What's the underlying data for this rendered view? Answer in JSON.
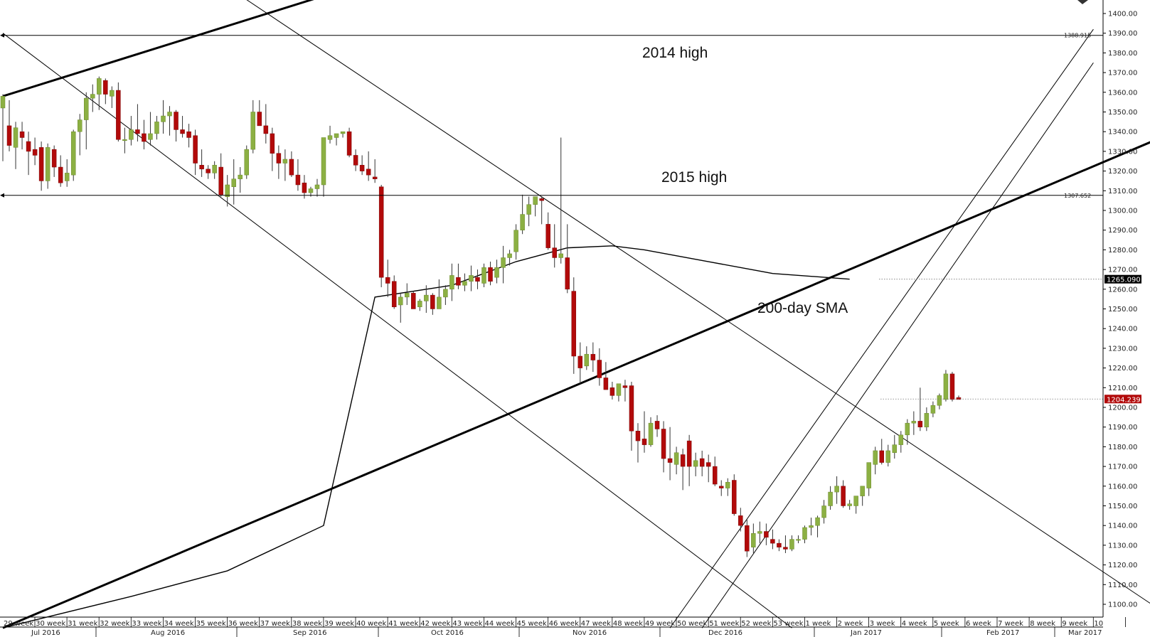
{
  "chart_data": {
    "type": "candlestick",
    "y_axis": {
      "range": [
        1100,
        1400
      ],
      "ticks": [
        "1400.00",
        "1390.00",
        "1380.00",
        "1370.00",
        "1360.00",
        "1350.00",
        "1340.00",
        "1330.00",
        "1320.00",
        "1310.00",
        "1300.00",
        "1290.00",
        "1280.00",
        "1270.00",
        "1260.00",
        "1250.00",
        "1240.00",
        "1230.00",
        "1220.00",
        "1210.00",
        "1200.00",
        "1190.00",
        "1180.00",
        "1170.00",
        "1160.00",
        "1150.00",
        "1140.00",
        "1130.00",
        "1120.00",
        "1110.00",
        "1100.00"
      ]
    },
    "x_axis": {
      "week_labels": [
        "29 week",
        "30 week",
        "31 week",
        "32 week",
        "33 week",
        "34 week",
        "35 week",
        "36 week",
        "37 week",
        "38 week",
        "39 week",
        "40 week",
        "41 week",
        "42 week",
        "43 week",
        "44 week",
        "45 week",
        "46 week",
        "47 week",
        "48 week",
        "49 week",
        "50 week",
        "51 week",
        "52 week",
        "53 week",
        "1 week",
        "2 week",
        "3 week",
        "4 week",
        "5 week",
        "6 week",
        "7 week",
        "8 week",
        "9 week",
        "10"
      ],
      "month_labels": [
        "Jul 2016",
        "Aug 2016",
        "Sep 2016",
        "Oct 2016",
        "Nov 2016",
        "Dec 2016",
        "Jan 2017",
        "Feb 2017",
        "Mar 2017"
      ]
    },
    "candles": [
      {
        "o": 1352,
        "h": 1359,
        "l": 1325,
        "c": 1358
      },
      {
        "o": 1343,
        "h": 1356,
        "l": 1330,
        "c": 1333
      },
      {
        "o": 1332,
        "h": 1345,
        "l": 1321,
        "c": 1342
      },
      {
        "o": 1340,
        "h": 1345,
        "l": 1331,
        "c": 1337
      },
      {
        "o": 1335,
        "h": 1340,
        "l": 1318,
        "c": 1330
      },
      {
        "o": 1331,
        "h": 1337,
        "l": 1323,
        "c": 1328
      },
      {
        "o": 1332,
        "h": 1335,
        "l": 1310,
        "c": 1315
      },
      {
        "o": 1315,
        "h": 1334,
        "l": 1311,
        "c": 1332
      },
      {
        "o": 1331,
        "h": 1333,
        "l": 1317,
        "c": 1322
      },
      {
        "o": 1322,
        "h": 1328,
        "l": 1312,
        "c": 1314
      },
      {
        "o": 1315,
        "h": 1326,
        "l": 1312,
        "c": 1319
      },
      {
        "o": 1318,
        "h": 1341,
        "l": 1315,
        "c": 1340
      },
      {
        "o": 1340,
        "h": 1349,
        "l": 1328,
        "c": 1346
      },
      {
        "o": 1346,
        "h": 1360,
        "l": 1331,
        "c": 1357
      },
      {
        "o": 1357,
        "h": 1364,
        "l": 1350,
        "c": 1359
      },
      {
        "o": 1359,
        "h": 1368,
        "l": 1351,
        "c": 1367
      },
      {
        "o": 1366,
        "h": 1367,
        "l": 1354,
        "c": 1359
      },
      {
        "o": 1358,
        "h": 1363,
        "l": 1352,
        "c": 1361
      },
      {
        "o": 1361,
        "h": 1365,
        "l": 1335,
        "c": 1336
      },
      {
        "o": 1336,
        "h": 1342,
        "l": 1329,
        "c": 1336
      },
      {
        "o": 1336,
        "h": 1348,
        "l": 1333,
        "c": 1341
      },
      {
        "o": 1341,
        "h": 1354,
        "l": 1335,
        "c": 1339
      },
      {
        "o": 1339,
        "h": 1346,
        "l": 1331,
        "c": 1335
      },
      {
        "o": 1336,
        "h": 1350,
        "l": 1333,
        "c": 1339
      },
      {
        "o": 1339,
        "h": 1348,
        "l": 1336,
        "c": 1345
      },
      {
        "o": 1345,
        "h": 1356,
        "l": 1339,
        "c": 1348
      },
      {
        "o": 1348,
        "h": 1353,
        "l": 1338,
        "c": 1350
      },
      {
        "o": 1350,
        "h": 1351,
        "l": 1335,
        "c": 1341
      },
      {
        "o": 1341,
        "h": 1348,
        "l": 1337,
        "c": 1339
      },
      {
        "o": 1340,
        "h": 1344,
        "l": 1332,
        "c": 1337
      },
      {
        "o": 1338,
        "h": 1341,
        "l": 1318,
        "c": 1324
      },
      {
        "o": 1323,
        "h": 1331,
        "l": 1317,
        "c": 1321
      },
      {
        "o": 1321,
        "h": 1323,
        "l": 1316,
        "c": 1319
      },
      {
        "o": 1319,
        "h": 1325,
        "l": 1316,
        "c": 1323
      },
      {
        "o": 1322,
        "h": 1329,
        "l": 1307,
        "c": 1308
      },
      {
        "o": 1307,
        "h": 1318,
        "l": 1302,
        "c": 1313
      },
      {
        "o": 1312,
        "h": 1326,
        "l": 1303,
        "c": 1316
      },
      {
        "o": 1316,
        "h": 1322,
        "l": 1309,
        "c": 1318
      },
      {
        "o": 1318,
        "h": 1333,
        "l": 1316,
        "c": 1331
      },
      {
        "o": 1331,
        "h": 1356,
        "l": 1329,
        "c": 1350
      },
      {
        "o": 1350,
        "h": 1356,
        "l": 1343,
        "c": 1343
      },
      {
        "o": 1343,
        "h": 1354,
        "l": 1334,
        "c": 1339
      },
      {
        "o": 1339,
        "h": 1342,
        "l": 1320,
        "c": 1329
      },
      {
        "o": 1329,
        "h": 1333,
        "l": 1316,
        "c": 1324
      },
      {
        "o": 1324,
        "h": 1331,
        "l": 1315,
        "c": 1326
      },
      {
        "o": 1326,
        "h": 1330,
        "l": 1317,
        "c": 1318
      },
      {
        "o": 1318,
        "h": 1326,
        "l": 1310,
        "c": 1313
      },
      {
        "o": 1314,
        "h": 1318,
        "l": 1306,
        "c": 1309
      },
      {
        "o": 1309,
        "h": 1312,
        "l": 1307,
        "c": 1311
      },
      {
        "o": 1311,
        "h": 1316,
        "l": 1307,
        "c": 1313
      },
      {
        "o": 1313,
        "h": 1336,
        "l": 1307,
        "c": 1337
      },
      {
        "o": 1336,
        "h": 1343,
        "l": 1334,
        "c": 1338
      },
      {
        "o": 1337,
        "h": 1338,
        "l": 1333,
        "c": 1339
      },
      {
        "o": 1339,
        "h": 1340,
        "l": 1337,
        "c": 1340
      },
      {
        "o": 1340,
        "h": 1342,
        "l": 1327,
        "c": 1328
      },
      {
        "o": 1328,
        "h": 1331,
        "l": 1320,
        "c": 1323
      },
      {
        "o": 1323,
        "h": 1328,
        "l": 1318,
        "c": 1320
      },
      {
        "o": 1321,
        "h": 1330,
        "l": 1315,
        "c": 1318
      },
      {
        "o": 1317,
        "h": 1326,
        "l": 1314,
        "c": 1316
      },
      {
        "o": 1312,
        "h": 1313,
        "l": 1261,
        "c": 1266
      },
      {
        "o": 1266,
        "h": 1275,
        "l": 1256,
        "c": 1263
      },
      {
        "o": 1264,
        "h": 1267,
        "l": 1250,
        "c": 1251
      },
      {
        "o": 1252,
        "h": 1258,
        "l": 1243,
        "c": 1256
      },
      {
        "o": 1256,
        "h": 1263,
        "l": 1252,
        "c": 1258
      },
      {
        "o": 1258,
        "h": 1259,
        "l": 1250,
        "c": 1250
      },
      {
        "o": 1251,
        "h": 1255,
        "l": 1249,
        "c": 1254
      },
      {
        "o": 1254,
        "h": 1262,
        "l": 1248,
        "c": 1257
      },
      {
        "o": 1257,
        "h": 1258,
        "l": 1247,
        "c": 1250
      },
      {
        "o": 1250,
        "h": 1265,
        "l": 1250,
        "c": 1256
      },
      {
        "o": 1256,
        "h": 1262,
        "l": 1252,
        "c": 1260
      },
      {
        "o": 1260,
        "h": 1273,
        "l": 1254,
        "c": 1267
      },
      {
        "o": 1266,
        "h": 1273,
        "l": 1260,
        "c": 1262
      },
      {
        "o": 1262,
        "h": 1268,
        "l": 1259,
        "c": 1264
      },
      {
        "o": 1264,
        "h": 1272,
        "l": 1259,
        "c": 1267
      },
      {
        "o": 1266,
        "h": 1270,
        "l": 1260,
        "c": 1264
      },
      {
        "o": 1263,
        "h": 1273,
        "l": 1261,
        "c": 1271
      },
      {
        "o": 1271,
        "h": 1274,
        "l": 1262,
        "c": 1264
      },
      {
        "o": 1266,
        "h": 1275,
        "l": 1263,
        "c": 1271
      },
      {
        "o": 1271,
        "h": 1282,
        "l": 1263,
        "c": 1276
      },
      {
        "o": 1276,
        "h": 1280,
        "l": 1272,
        "c": 1278
      },
      {
        "o": 1279,
        "h": 1293,
        "l": 1275,
        "c": 1290
      },
      {
        "o": 1290,
        "h": 1308,
        "l": 1288,
        "c": 1298
      },
      {
        "o": 1298,
        "h": 1307,
        "l": 1292,
        "c": 1303
      },
      {
        "o": 1303,
        "h": 1307,
        "l": 1297,
        "c": 1307
      },
      {
        "o": 1306,
        "h": 1307,
        "l": 1293,
        "c": 1305
      },
      {
        "o": 1293,
        "h": 1299,
        "l": 1280,
        "c": 1281
      },
      {
        "o": 1281,
        "h": 1293,
        "l": 1271,
        "c": 1276
      },
      {
        "o": 1276,
        "h": 1337,
        "l": 1273,
        "c": 1278
      },
      {
        "o": 1276,
        "h": 1293,
        "l": 1258,
        "c": 1260
      },
      {
        "o": 1259,
        "h": 1266,
        "l": 1217,
        "c": 1226
      },
      {
        "o": 1226,
        "h": 1233,
        "l": 1212,
        "c": 1220
      },
      {
        "o": 1221,
        "h": 1231,
        "l": 1219,
        "c": 1227
      },
      {
        "o": 1227,
        "h": 1233,
        "l": 1218,
        "c": 1224
      },
      {
        "o": 1224,
        "h": 1230,
        "l": 1211,
        "c": 1215
      },
      {
        "o": 1215,
        "h": 1223,
        "l": 1209,
        "c": 1209
      },
      {
        "o": 1210,
        "h": 1213,
        "l": 1204,
        "c": 1206
      },
      {
        "o": 1206,
        "h": 1212,
        "l": 1203,
        "c": 1212
      },
      {
        "o": 1211,
        "h": 1214,
        "l": 1203,
        "c": 1210
      },
      {
        "o": 1211,
        "h": 1213,
        "l": 1178,
        "c": 1188
      },
      {
        "o": 1188,
        "h": 1192,
        "l": 1172,
        "c": 1183
      },
      {
        "o": 1184,
        "h": 1198,
        "l": 1177,
        "c": 1181
      },
      {
        "o": 1181,
        "h": 1195,
        "l": 1180,
        "c": 1192
      },
      {
        "o": 1193,
        "h": 1196,
        "l": 1185,
        "c": 1189
      },
      {
        "o": 1189,
        "h": 1193,
        "l": 1167,
        "c": 1174
      },
      {
        "o": 1174,
        "h": 1190,
        "l": 1163,
        "c": 1172
      },
      {
        "o": 1171,
        "h": 1180,
        "l": 1166,
        "c": 1177
      },
      {
        "o": 1176,
        "h": 1179,
        "l": 1158,
        "c": 1170
      },
      {
        "o": 1183,
        "h": 1186,
        "l": 1160,
        "c": 1170
      },
      {
        "o": 1170,
        "h": 1177,
        "l": 1165,
        "c": 1173
      },
      {
        "o": 1174,
        "h": 1178,
        "l": 1165,
        "c": 1170
      },
      {
        "o": 1172,
        "h": 1176,
        "l": 1162,
        "c": 1170
      },
      {
        "o": 1170,
        "h": 1175,
        "l": 1160,
        "c": 1161
      },
      {
        "o": 1160,
        "h": 1163,
        "l": 1155,
        "c": 1159
      },
      {
        "o": 1159,
        "h": 1164,
        "l": 1155,
        "c": 1162
      },
      {
        "o": 1163,
        "h": 1166,
        "l": 1145,
        "c": 1146
      },
      {
        "o": 1145,
        "h": 1149,
        "l": 1137,
        "c": 1140
      },
      {
        "o": 1140,
        "h": 1143,
        "l": 1124,
        "c": 1127
      },
      {
        "o": 1129,
        "h": 1141,
        "l": 1126,
        "c": 1136
      },
      {
        "o": 1136,
        "h": 1142,
        "l": 1131,
        "c": 1137
      },
      {
        "o": 1137,
        "h": 1141,
        "l": 1130,
        "c": 1134
      },
      {
        "o": 1133,
        "h": 1138,
        "l": 1128,
        "c": 1131
      },
      {
        "o": 1131,
        "h": 1133,
        "l": 1127,
        "c": 1129
      },
      {
        "o": 1129,
        "h": 1135,
        "l": 1126,
        "c": 1128
      },
      {
        "o": 1128,
        "h": 1135,
        "l": 1127,
        "c": 1133
      },
      {
        "o": 1133,
        "h": 1135,
        "l": 1131,
        "c": 1133
      },
      {
        "o": 1133,
        "h": 1140,
        "l": 1131,
        "c": 1139
      },
      {
        "o": 1139,
        "h": 1144,
        "l": 1135,
        "c": 1140
      },
      {
        "o": 1140,
        "h": 1145,
        "l": 1134,
        "c": 1144
      },
      {
        "o": 1144,
        "h": 1153,
        "l": 1141,
        "c": 1150
      },
      {
        "o": 1150,
        "h": 1160,
        "l": 1148,
        "c": 1157
      },
      {
        "o": 1157,
        "h": 1165,
        "l": 1151,
        "c": 1160
      },
      {
        "o": 1160,
        "h": 1163,
        "l": 1149,
        "c": 1150
      },
      {
        "o": 1150,
        "h": 1153,
        "l": 1148,
        "c": 1151
      },
      {
        "o": 1150,
        "h": 1155,
        "l": 1146,
        "c": 1155
      },
      {
        "o": 1155,
        "h": 1160,
        "l": 1150,
        "c": 1160
      },
      {
        "o": 1159,
        "h": 1171,
        "l": 1155,
        "c": 1172
      },
      {
        "o": 1171,
        "h": 1180,
        "l": 1166,
        "c": 1178
      },
      {
        "o": 1178,
        "h": 1184,
        "l": 1171,
        "c": 1172
      },
      {
        "o": 1172,
        "h": 1181,
        "l": 1170,
        "c": 1178
      },
      {
        "o": 1177,
        "h": 1186,
        "l": 1174,
        "c": 1181
      },
      {
        "o": 1181,
        "h": 1188,
        "l": 1177,
        "c": 1186
      },
      {
        "o": 1186,
        "h": 1194,
        "l": 1181,
        "c": 1192
      },
      {
        "o": 1192,
        "h": 1198,
        "l": 1186,
        "c": 1193
      },
      {
        "o": 1193,
        "h": 1210,
        "l": 1188,
        "c": 1190
      },
      {
        "o": 1190,
        "h": 1200,
        "l": 1188,
        "c": 1197
      },
      {
        "o": 1197,
        "h": 1203,
        "l": 1195,
        "c": 1201
      },
      {
        "o": 1201,
        "h": 1207,
        "l": 1199,
        "c": 1206
      },
      {
        "o": 1204,
        "h": 1219,
        "l": 1203,
        "c": 1217
      },
      {
        "o": 1217,
        "h": 1218,
        "l": 1203,
        "c": 1204
      },
      {
        "o": 1205,
        "h": 1206,
        "l": 1204,
        "c": 1204
      }
    ],
    "horizontal_levels": [
      {
        "value": 1388.915,
        "label": "1388.915"
      },
      {
        "value": 1307.652,
        "label": "1307.652"
      }
    ],
    "price_tags": [
      {
        "value": 1265.09,
        "label": "1265.090",
        "color": "#000000"
      },
      {
        "value": 1204.239,
        "label": "1204.239",
        "color": "#b20a0a"
      }
    ],
    "annotations": [
      "2014 high",
      "2015 high",
      "200-day SMA"
    ],
    "sma_label": "200-day SMA",
    "colors": {
      "bull": "#8cb043",
      "bear": "#b20a0a",
      "wick": "#333333",
      "line": "#000000"
    }
  }
}
